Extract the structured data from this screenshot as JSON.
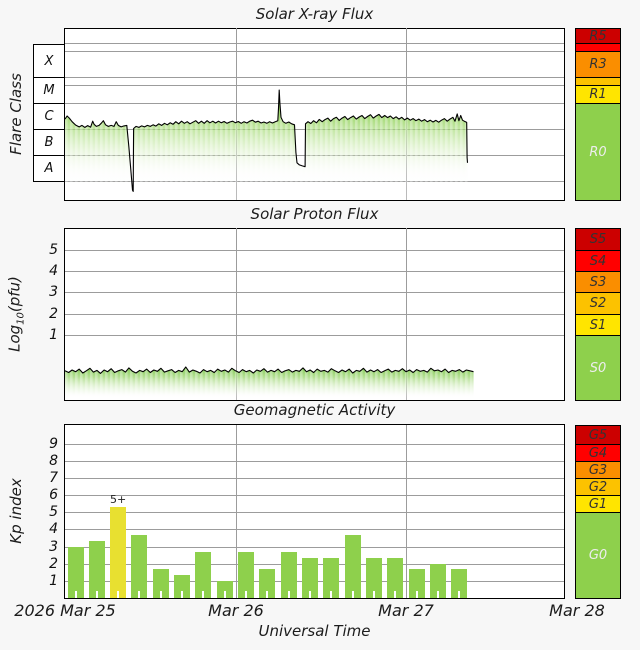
{
  "page_bg": "#f7f7f7",
  "colors": {
    "dark_red": "#cc0000",
    "red": "#ff0000",
    "orange": "#fa8e00",
    "amber": "#fcc200",
    "yellow": "#ffe500",
    "bar_yellow": "#e8e030",
    "green": "#8ed04c",
    "line": "#000000",
    "grid": "#9c9c9c",
    "plot_bg": "#ffffff",
    "dark_text": "#333333",
    "light_text": "#ededed"
  },
  "footer": {
    "xlabel": "Universal Time",
    "xticks": [
      "2026 Mar 25",
      "Mar 26",
      "Mar 27",
      "Mar 28"
    ]
  },
  "chart_data": [
    {
      "type": "area",
      "title": "Solar X-ray Flux",
      "ylabel": "Flare Class",
      "yscale": "log10 watts per square meter",
      "ylim": [
        -8.73,
        -2.12
      ],
      "flare_class_bands": [
        "X",
        "M",
        "C",
        "B",
        "A"
      ],
      "hgrid": [
        -2.71,
        -3,
        -4,
        -4.3,
        -5,
        -6,
        -7,
        -8
      ],
      "right_scale": [
        {
          "label": "R5",
          "color": "dark_red",
          "lo": -2.7,
          "hi": -2.12,
          "text": "dark"
        },
        {
          "label": "",
          "color": "red",
          "lo": -3,
          "hi": -2.7,
          "text": "dark"
        },
        {
          "label": "R3",
          "color": "orange",
          "lo": -4,
          "hi": -3,
          "text": "dark"
        },
        {
          "label": "",
          "color": "amber",
          "lo": -4.3,
          "hi": -4,
          "text": "dark"
        },
        {
          "label": "R1",
          "color": "yellow",
          "lo": -5,
          "hi": -4.3,
          "text": "dark"
        },
        {
          "label": "R0",
          "color": "green",
          "lo": -8.73,
          "hi": -5,
          "text": "light"
        }
      ],
      "points": [
        [
          0,
          -5.62
        ],
        [
          0.3,
          -5.5
        ],
        [
          0.6,
          -5.58
        ],
        [
          1,
          -5.72
        ],
        [
          1.5,
          -5.85
        ],
        [
          2,
          -5.92
        ],
        [
          2.4,
          -5.86
        ],
        [
          2.8,
          -5.94
        ],
        [
          3.2,
          -5.87
        ],
        [
          3.6,
          -5.93
        ],
        [
          3.9,
          -5.7
        ],
        [
          4.1,
          -5.82
        ],
        [
          4.4,
          -5.9
        ],
        [
          4.8,
          -5.86
        ],
        [
          5.1,
          -5.78
        ],
        [
          5.4,
          -5.68
        ],
        [
          5.7,
          -5.84
        ],
        [
          6.1,
          -5.9
        ],
        [
          6.5,
          -5.86
        ],
        [
          6.9,
          -5.9
        ],
        [
          7.2,
          -5.72
        ],
        [
          7.5,
          -5.86
        ],
        [
          7.9,
          -5.92
        ],
        [
          8.3,
          -5.88
        ],
        [
          8.7,
          -5.86
        ],
        [
          9,
          -6.7
        ],
        [
          9.3,
          -7.7
        ],
        [
          9.5,
          -8.35
        ],
        [
          9.6,
          -8.4
        ],
        [
          9.65,
          -5.98
        ],
        [
          10,
          -5.9
        ],
        [
          10.4,
          -5.94
        ],
        [
          10.8,
          -5.88
        ],
        [
          11.2,
          -5.92
        ],
        [
          11.6,
          -5.86
        ],
        [
          12,
          -5.9
        ],
        [
          12.4,
          -5.84
        ],
        [
          12.8,
          -5.89
        ],
        [
          13.2,
          -5.8
        ],
        [
          13.6,
          -5.86
        ],
        [
          14,
          -5.78
        ],
        [
          14.4,
          -5.84
        ],
        [
          14.8,
          -5.76
        ],
        [
          15.2,
          -5.82
        ],
        [
          15.6,
          -5.72
        ],
        [
          16,
          -5.8
        ],
        [
          16.4,
          -5.7
        ],
        [
          16.8,
          -5.78
        ],
        [
          17.2,
          -5.72
        ],
        [
          17.6,
          -5.8
        ],
        [
          18,
          -5.74
        ],
        [
          18.4,
          -5.68
        ],
        [
          18.8,
          -5.78
        ],
        [
          19.2,
          -5.7
        ],
        [
          19.6,
          -5.78
        ],
        [
          20,
          -5.68
        ],
        [
          20.4,
          -5.76
        ],
        [
          20.8,
          -5.7
        ],
        [
          21.2,
          -5.77
        ],
        [
          21.6,
          -5.7
        ],
        [
          22,
          -5.76
        ],
        [
          22.4,
          -5.71
        ],
        [
          22.8,
          -5.78
        ],
        [
          23.2,
          -5.73
        ],
        [
          23.6,
          -5.7
        ],
        [
          24,
          -5.76
        ],
        [
          24.4,
          -5.71
        ],
        [
          24.8,
          -5.78
        ],
        [
          25.2,
          -5.72
        ],
        [
          25.6,
          -5.77
        ],
        [
          26,
          -5.7
        ],
        [
          26.4,
          -5.66
        ],
        [
          26.8,
          -5.74
        ],
        [
          27.2,
          -5.7
        ],
        [
          27.6,
          -5.77
        ],
        [
          28,
          -5.73
        ],
        [
          28.4,
          -5.78
        ],
        [
          28.8,
          -5.72
        ],
        [
          29.2,
          -5.77
        ],
        [
          29.6,
          -5.72
        ],
        [
          29.95,
          -5.68
        ],
        [
          30.05,
          -5.2
        ],
        [
          30.15,
          -4.5
        ],
        [
          30.25,
          -5
        ],
        [
          30.4,
          -5.55
        ],
        [
          30.7,
          -5.72
        ],
        [
          31.1,
          -5.78
        ],
        [
          31.5,
          -5.73
        ],
        [
          31.9,
          -5.8
        ],
        [
          32.3,
          -5.84
        ],
        [
          32.5,
          -6.9
        ],
        [
          32.65,
          -7.3
        ],
        [
          33,
          -7.38
        ],
        [
          33.4,
          -7.42
        ],
        [
          33.8,
          -7.45
        ],
        [
          33.85,
          -5.8
        ],
        [
          34.2,
          -5.72
        ],
        [
          34.6,
          -5.79
        ],
        [
          35,
          -5.68
        ],
        [
          35.4,
          -5.76
        ],
        [
          35.8,
          -5.63
        ],
        [
          36.2,
          -5.72
        ],
        [
          36.6,
          -5.64
        ],
        [
          37,
          -5.58
        ],
        [
          37.4,
          -5.7
        ],
        [
          37.8,
          -5.6
        ],
        [
          38.2,
          -5.55
        ],
        [
          38.6,
          -5.67
        ],
        [
          39,
          -5.58
        ],
        [
          39.4,
          -5.52
        ],
        [
          39.8,
          -5.64
        ],
        [
          40.2,
          -5.56
        ],
        [
          40.6,
          -5.5
        ],
        [
          41,
          -5.62
        ],
        [
          41.4,
          -5.54
        ],
        [
          41.8,
          -5.48
        ],
        [
          42.2,
          -5.6
        ],
        [
          42.6,
          -5.52
        ],
        [
          43,
          -5.45
        ],
        [
          43.4,
          -5.58
        ],
        [
          43.8,
          -5.5
        ],
        [
          44.2,
          -5.44
        ],
        [
          44.6,
          -5.56
        ],
        [
          45,
          -5.48
        ],
        [
          45.4,
          -5.56
        ],
        [
          45.8,
          -5.5
        ],
        [
          46.2,
          -5.6
        ],
        [
          46.6,
          -5.53
        ],
        [
          47,
          -5.62
        ],
        [
          47.4,
          -5.55
        ],
        [
          47.8,
          -5.65
        ],
        [
          48.2,
          -5.58
        ],
        [
          48.6,
          -5.66
        ],
        [
          49,
          -5.6
        ],
        [
          49.4,
          -5.68
        ],
        [
          49.8,
          -5.62
        ],
        [
          50.2,
          -5.7
        ],
        [
          50.6,
          -5.64
        ],
        [
          51,
          -5.72
        ],
        [
          51.4,
          -5.66
        ],
        [
          51.8,
          -5.73
        ],
        [
          52.2,
          -5.67
        ],
        [
          52.6,
          -5.74
        ],
        [
          53,
          -5.66
        ],
        [
          53.4,
          -5.6
        ],
        [
          53.8,
          -5.7
        ],
        [
          54.2,
          -5.62
        ],
        [
          54.6,
          -5.55
        ],
        [
          54.9,
          -5.7
        ],
        [
          55.2,
          -5.42
        ],
        [
          55.45,
          -5.68
        ],
        [
          55.7,
          -5.48
        ],
        [
          55.95,
          -5.66
        ],
        [
          56.2,
          -5.7
        ],
        [
          56.45,
          -5.73
        ],
        [
          56.55,
          -5.75
        ],
        [
          56.6,
          -7.1
        ],
        [
          56.65,
          -7.3
        ]
      ]
    },
    {
      "type": "area",
      "title": "Solar Proton Flux",
      "ylabel": "Log10(pfu)",
      "ylabel_parts": {
        "pre": "Log",
        "sub": "10",
        "post": "(pfu)"
      },
      "ylim": [
        -2.08,
        6.04
      ],
      "yticks": [
        5,
        4,
        3,
        2,
        1
      ],
      "hgrid": [
        5,
        4,
        3,
        2,
        1
      ],
      "right_scale": [
        {
          "label": "S5",
          "color": "dark_red",
          "lo": 5,
          "hi": 6.04,
          "text": "dark"
        },
        {
          "label": "S4",
          "color": "red",
          "lo": 4,
          "hi": 5,
          "text": "dark"
        },
        {
          "label": "S3",
          "color": "orange",
          "lo": 3,
          "hi": 4,
          "text": "dark"
        },
        {
          "label": "S2",
          "color": "amber",
          "lo": 2,
          "hi": 3,
          "text": "dark"
        },
        {
          "label": "S1",
          "color": "yellow",
          "lo": 1,
          "hi": 2,
          "text": "dark"
        },
        {
          "label": "S0",
          "color": "green",
          "lo": -2.08,
          "hi": 1,
          "text": "light"
        }
      ],
      "x_start_hour": 0,
      "x_step_hours": 0.5,
      "values": [
        -0.7,
        -0.78,
        -0.66,
        -0.74,
        -0.62,
        -0.8,
        -0.7,
        -0.58,
        -0.76,
        -0.68,
        -0.82,
        -0.66,
        -0.74,
        -0.6,
        -0.78,
        -0.7,
        -0.64,
        -0.76,
        -0.56,
        -0.72,
        -0.8,
        -0.68,
        -0.74,
        -0.62,
        -0.78,
        -0.66,
        -0.72,
        -0.58,
        -0.76,
        -0.7,
        -0.64,
        -0.78,
        -0.68,
        -0.74,
        -0.52,
        -0.76,
        -0.66,
        -0.72,
        -0.8,
        -0.64,
        -0.74,
        -0.68,
        -0.78,
        -0.62,
        -0.72,
        -0.66,
        -0.76,
        -0.58,
        -0.7,
        -0.78,
        -0.64,
        -0.74,
        -0.68,
        -0.8,
        -0.66,
        -0.72,
        -0.6,
        -0.76,
        -0.68,
        -0.74,
        -0.62,
        -0.78,
        -0.7,
        -0.64,
        -0.76,
        -0.68,
        -0.72,
        -0.56,
        -0.74,
        -0.66,
        -0.78,
        -0.62,
        -0.72,
        -0.68,
        -0.76,
        -0.6,
        -0.7,
        -0.78,
        -0.66,
        -0.74,
        -0.62,
        -0.8,
        -0.68,
        -0.72,
        -0.58,
        -0.76,
        -0.66,
        -0.74,
        -0.64,
        -0.78,
        -0.7,
        -0.62,
        -0.76,
        -0.68,
        -0.72,
        -0.6,
        -0.74,
        -0.66,
        -0.78,
        -0.64,
        -0.72,
        -0.68,
        -0.76,
        -0.58,
        -0.7,
        -0.66,
        -0.74,
        -0.62,
        -0.78,
        -0.68,
        -0.72,
        -0.64,
        -0.76,
        -0.66,
        -0.7,
        -0.74
      ]
    },
    {
      "type": "bar",
      "title": "Geomagnetic Activity",
      "ylabel": "Kp index",
      "ylim": [
        0,
        10.09
      ],
      "yticks": [
        9,
        8,
        7,
        6,
        5,
        4,
        3,
        2,
        1
      ],
      "hgrid": [
        1,
        2,
        3,
        4,
        5,
        6,
        7,
        8,
        9
      ],
      "right_scale": [
        {
          "label": "G5",
          "color": "dark_red",
          "lo": 9,
          "hi": 10.09,
          "text": "dark"
        },
        {
          "label": "G4",
          "color": "red",
          "lo": 8,
          "hi": 9,
          "text": "dark"
        },
        {
          "label": "G3",
          "color": "orange",
          "lo": 7,
          "hi": 8,
          "text": "dark"
        },
        {
          "label": "G2",
          "color": "amber",
          "lo": 6,
          "hi": 7,
          "text": "dark"
        },
        {
          "label": "G1",
          "color": "yellow",
          "lo": 5,
          "hi": 6,
          "text": "dark"
        },
        {
          "label": "G0",
          "color": "green",
          "lo": 0,
          "hi": 5,
          "text": "light"
        }
      ],
      "bar_interval_hours": 3,
      "yellow_threshold": 5,
      "values": [
        3,
        3.33,
        5.33,
        3.67,
        1.67,
        1.33,
        2.67,
        1,
        2.67,
        1.67,
        2.67,
        2.33,
        2.33,
        3.67,
        2.33,
        2.33,
        1.67,
        2,
        1.67
      ],
      "annotations": [
        {
          "index": 2,
          "text": "5+"
        }
      ]
    }
  ]
}
